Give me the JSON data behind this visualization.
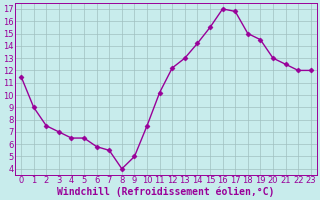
{
  "x": [
    0,
    1,
    2,
    3,
    4,
    5,
    6,
    7,
    8,
    9,
    10,
    11,
    12,
    13,
    14,
    15,
    16,
    17,
    18,
    19,
    20,
    21,
    22,
    23
  ],
  "y": [
    11.5,
    9.0,
    7.5,
    7.0,
    6.5,
    6.5,
    5.8,
    5.5,
    4.0,
    5.0,
    7.5,
    10.2,
    12.2,
    13.0,
    14.2,
    15.5,
    17.0,
    16.8,
    15.0,
    14.5,
    13.0,
    12.5,
    12.0,
    12.0
  ],
  "line_color": "#990099",
  "marker": "D",
  "markersize": 2.5,
  "linewidth": 1.0,
  "xlabel": "Windchill (Refroidissement éolien,°C)",
  "xlabel_fontsize": 7,
  "ylabel_ticks": [
    4,
    5,
    6,
    7,
    8,
    9,
    10,
    11,
    12,
    13,
    14,
    15,
    16,
    17
  ],
  "ylim": [
    3.5,
    17.5
  ],
  "xlim": [
    -0.5,
    23.5
  ],
  "background_color": "#c8ecec",
  "grid_color": "#a0c0c0",
  "tick_fontsize": 6,
  "label_color": "#990099"
}
